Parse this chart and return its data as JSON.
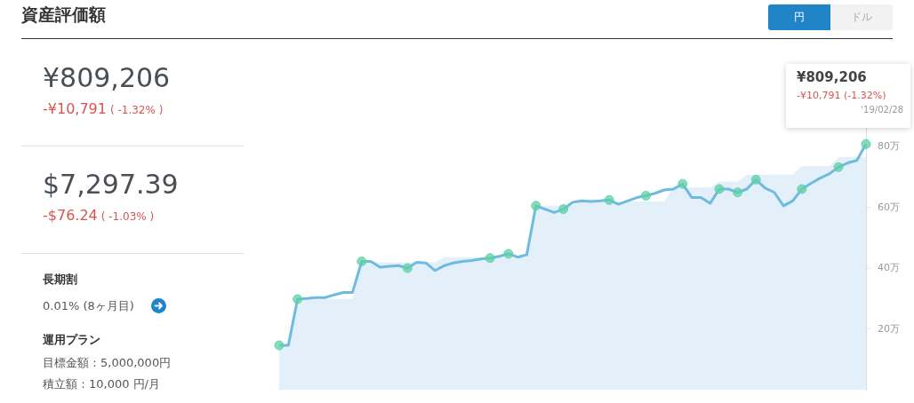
{
  "chart_data": {
    "type": "line",
    "title": "資産評価額",
    "categories": [
      null,
      null,
      null,
      null,
      null,
      null,
      null,
      null,
      null,
      null,
      null,
      null,
      null,
      null,
      null,
      null,
      null,
      null,
      null,
      null,
      null,
      null,
      null,
      null,
      null,
      null,
      null,
      null,
      null,
      null,
      null,
      null,
      null,
      null,
      null,
      null,
      null,
      null,
      null,
      null,
      null,
      null,
      null,
      null,
      null,
      null,
      null,
      null,
      null,
      null,
      null,
      null,
      null,
      null,
      null,
      null,
      null,
      null,
      null,
      null,
      null,
      null,
      null,
      null,
      null
    ],
    "series": [
      {
        "color": "#6fbbe0",
        "marker": "none",
        "values": [
          14.7,
          14.7,
          29.9,
          30.1,
          30.4,
          30.4,
          31.3,
          32.1,
          32.1,
          42.3,
          42.3,
          40.4,
          40.7,
          40.9,
          40.1,
          42.0,
          41.8,
          39.3,
          40.9,
          41.8,
          42.3,
          42.6,
          43.1,
          43.4,
          44.0,
          44.8,
          43.7,
          44.5,
          60.6,
          59.5,
          58.4,
          59.5,
          61.7,
          62.2,
          62.0,
          62.2,
          62.5,
          61.1,
          62.2,
          63.3,
          63.9,
          64.7,
          65.8,
          66.1,
          67.8,
          63.3,
          63.3,
          61.4,
          66.1,
          66.1,
          65.0,
          66.1,
          69.2,
          66.4,
          65.0,
          60.6,
          62.2,
          66.1,
          68.0,
          69.7,
          71.1,
          73.3,
          74.7,
          75.5,
          80.9
        ]
      },
      {
        "type": "area",
        "color": "#e3f0fa",
        "values": [
          14.7,
          14.7,
          30.0,
          30.0,
          30.0,
          30.0,
          30.0,
          30.0,
          30.0,
          42.0,
          42.0,
          42.0,
          42.0,
          42.0,
          42.0,
          42.0,
          42.0,
          42.0,
          43.7,
          43.7,
          43.7,
          43.7,
          43.7,
          43.7,
          43.7,
          43.7,
          43.7,
          43.7,
          60.6,
          60.6,
          60.6,
          60.6,
          60.6,
          62.0,
          62.0,
          62.0,
          62.0,
          62.0,
          62.0,
          62.0,
          62.0,
          62.0,
          62.0,
          66.7,
          66.7,
          66.7,
          66.7,
          66.7,
          68.6,
          68.6,
          68.6,
          70.8,
          70.8,
          70.8,
          70.8,
          70.8,
          70.8,
          73.6,
          73.6,
          73.6,
          73.6,
          76.6,
          76.6,
          76.6,
          76.6
        ]
      },
      {
        "type": "scatter",
        "color": "#5fd0a6",
        "marker": "circle",
        "values": [
          14.7,
          null,
          29.9,
          null,
          null,
          null,
          null,
          null,
          null,
          42.3,
          null,
          null,
          null,
          null,
          40.1,
          null,
          null,
          null,
          null,
          null,
          null,
          null,
          null,
          43.4,
          null,
          44.8,
          null,
          null,
          60.6,
          null,
          null,
          59.5,
          null,
          null,
          null,
          null,
          62.5,
          null,
          null,
          null,
          63.9,
          null,
          null,
          null,
          67.8,
          null,
          null,
          null,
          66.1,
          null,
          65.0,
          null,
          69.2,
          null,
          null,
          null,
          null,
          66.1,
          null,
          null,
          null,
          73.3,
          null,
          null,
          80.9
        ]
      }
    ],
    "ylim": [
      0,
      106.5
    ],
    "yticks": [
      {
        "value": 20,
        "label": "20万"
      },
      {
        "value": 40,
        "label": "40万"
      },
      {
        "value": 60,
        "label": "60万"
      },
      {
        "value": 80,
        "label": "80万"
      }
    ],
    "tick_labels": "y",
    "grid": false,
    "legend": false,
    "annotations": [
      "¥809,206",
      "-¥10,791",
      "( -1.32% )",
      "$7,297.39",
      "-$76.24",
      "( -1.03% )",
      "長期割",
      "0.01% (8ヶ月目)",
      "運用プラン",
      "目標金額：5,000,000円",
      "積立額：10,000 円/月",
      "円",
      "ドル",
      "¥809,206",
      "-¥10,791 (-1.32%)",
      "'19/02/28"
    ]
  }
}
